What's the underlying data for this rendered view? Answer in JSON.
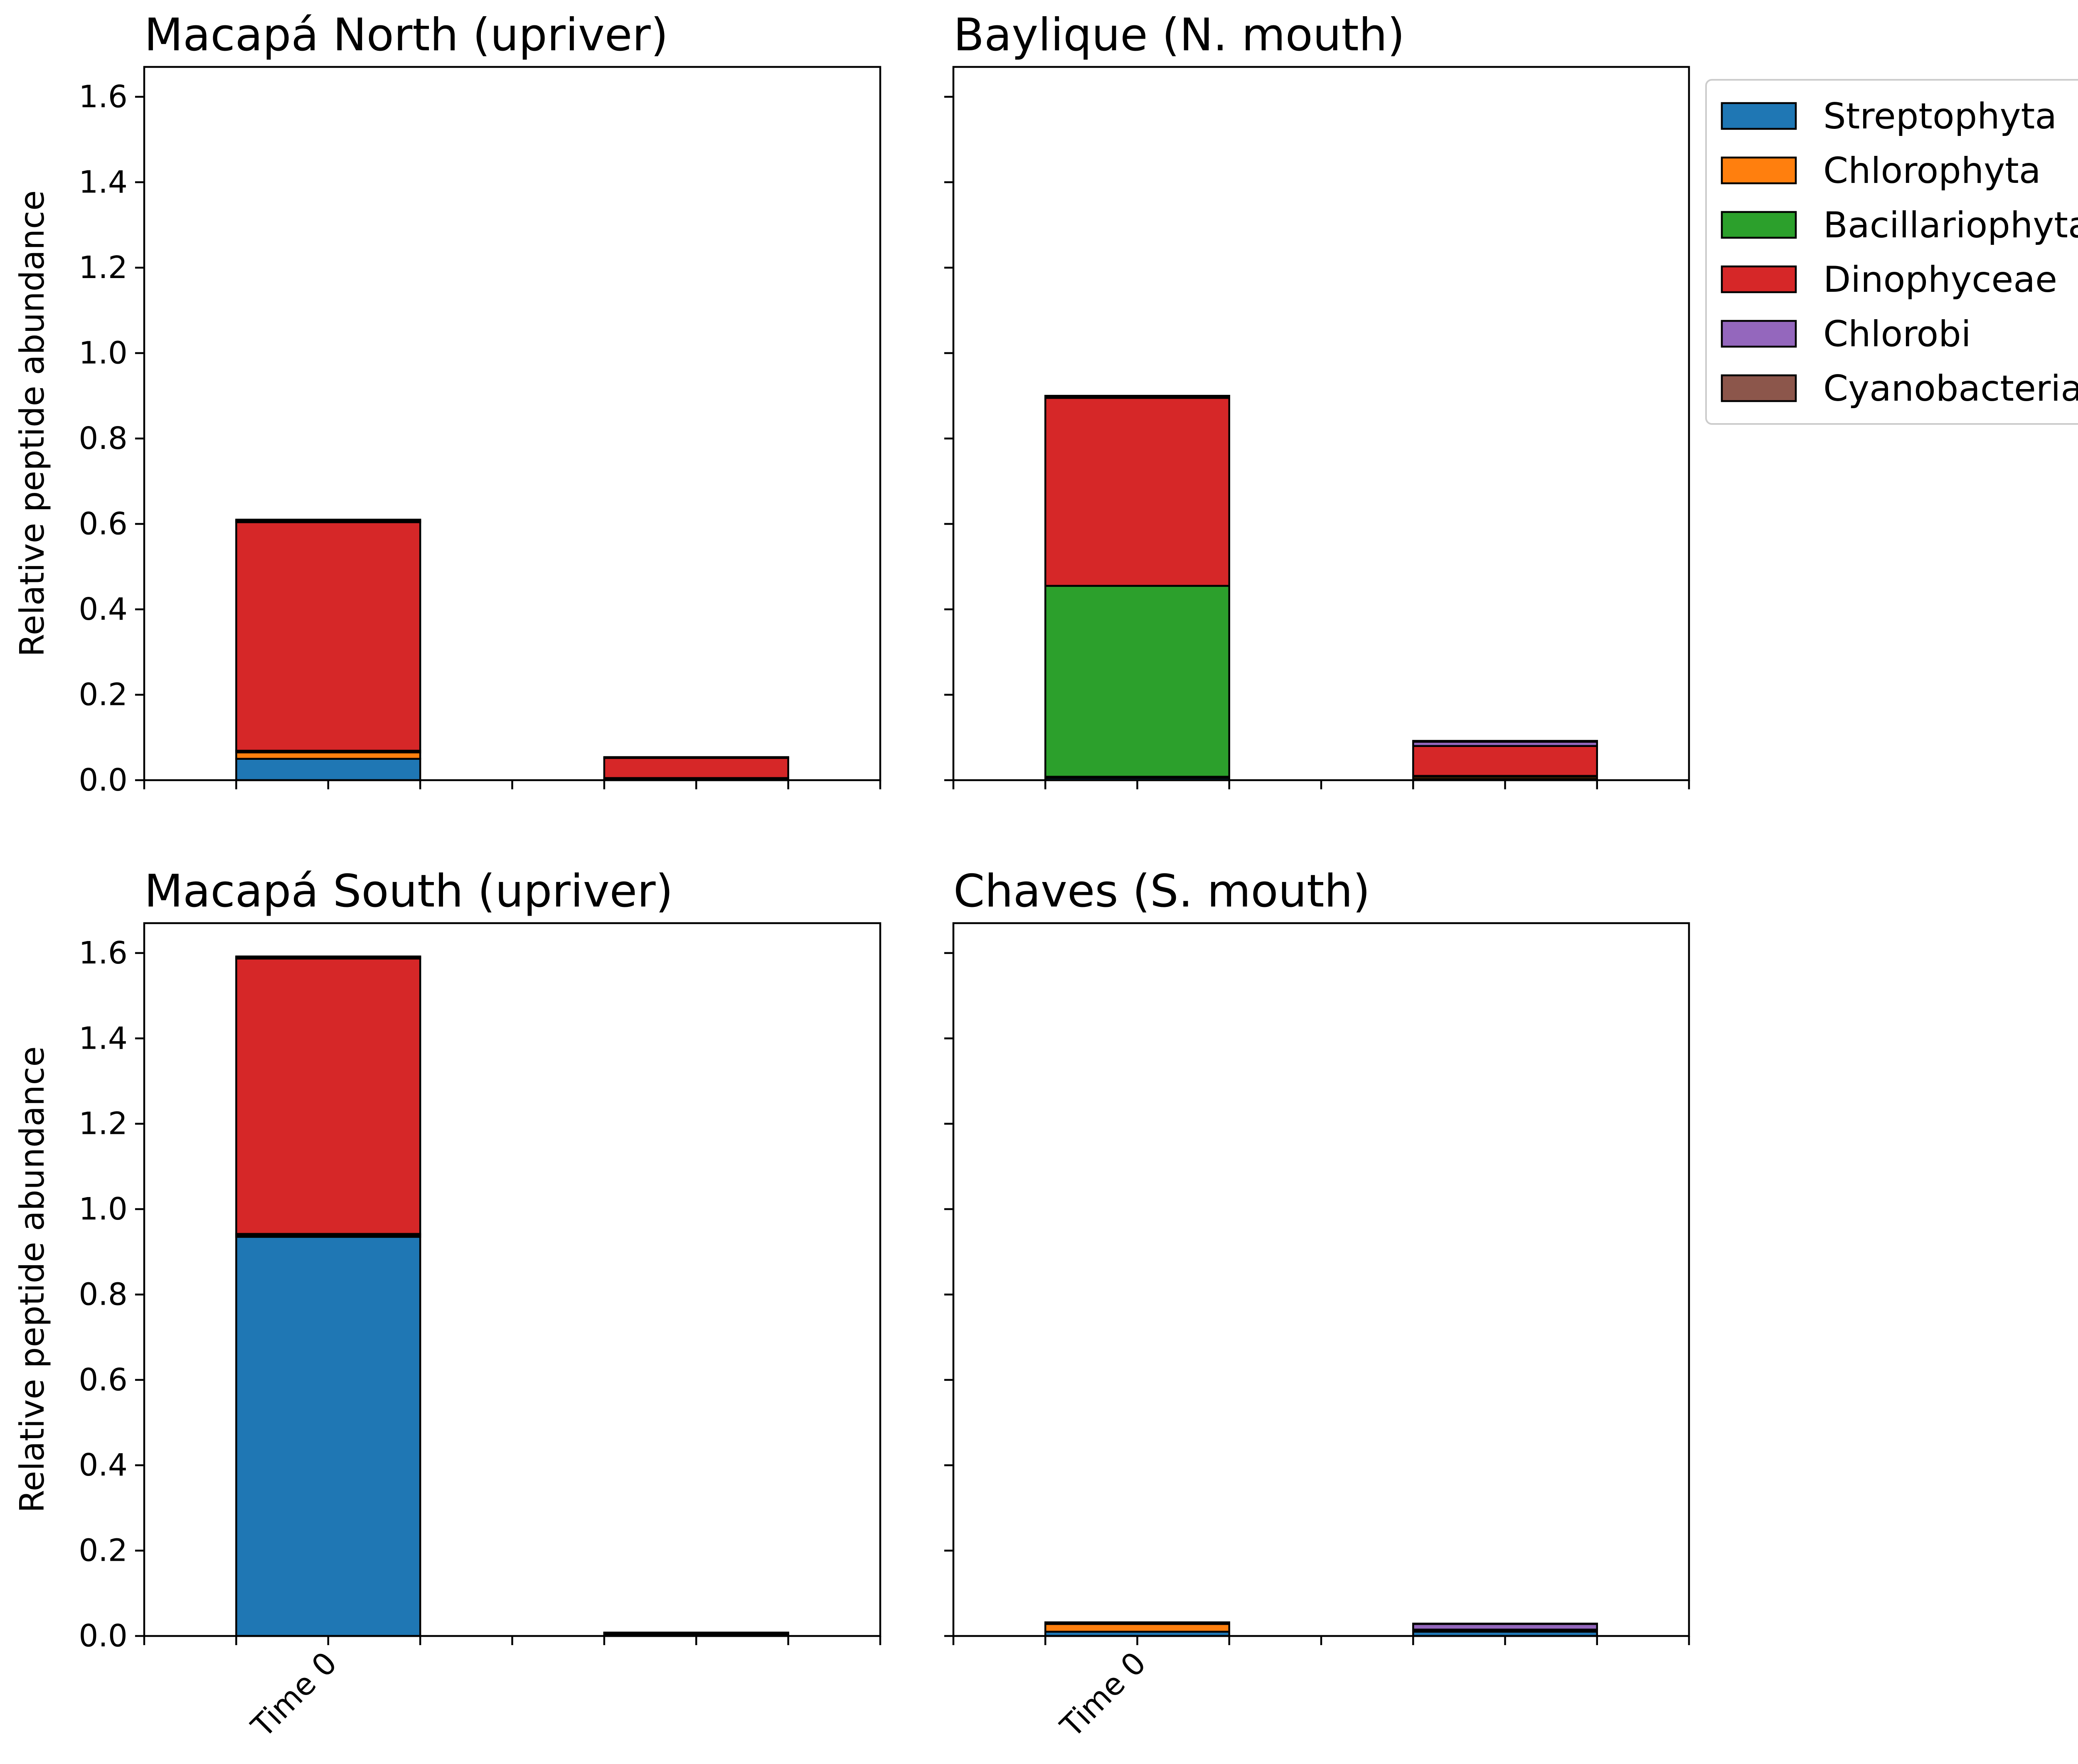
{
  "chart_data": {
    "type": "bar",
    "stacked": true,
    "layout": "2x2 subplots, shared y axis",
    "ylim": [
      0,
      1.67
    ],
    "yticks": [
      "0.0",
      "0.2",
      "0.4",
      "0.6",
      "0.8",
      "1.0",
      "1.2",
      "1.4",
      "1.6"
    ],
    "ytick_values": [
      0.0,
      0.2,
      0.4,
      0.6,
      0.8,
      1.0,
      1.2,
      1.4,
      1.6
    ],
    "ylabel": "Relative peptide abundance",
    "categories": [
      "Time 0",
      ""
    ],
    "category_tick_labels": [
      "Time 0",
      ""
    ],
    "grid": false,
    "legend_position": "right of top-right panel",
    "series": [
      {
        "name": "Streptophyta",
        "color": "#1f77b4"
      },
      {
        "name": "Chlorophyta",
        "color": "#ff7f0e"
      },
      {
        "name": "Bacillariophyta",
        "color": "#2ca02c"
      },
      {
        "name": "Dinophyceae",
        "color": "#d62728"
      },
      {
        "name": "Chlorobi",
        "color": "#9467bd"
      },
      {
        "name": "Cyanobacteria",
        "color": "#8c564b"
      }
    ],
    "panels": [
      {
        "title": "Macapá North (upriver)",
        "values": [
          [
            0.05,
            0.003
          ],
          [
            0.015,
            0.002
          ],
          [
            0.004,
            0.0
          ],
          [
            0.535,
            0.047
          ],
          [
            0.003,
            0.002
          ],
          [
            0.003,
            0.0
          ]
        ]
      },
      {
        "title": "Baylique (N. mouth)",
        "values": [
          [
            0.005,
            0.003
          ],
          [
            0.003,
            0.005
          ],
          [
            0.447,
            0.002
          ],
          [
            0.44,
            0.07
          ],
          [
            0.003,
            0.01
          ],
          [
            0.002,
            0.002
          ]
        ]
      },
      {
        "title": "Macapá South (upriver)",
        "values": [
          [
            0.935,
            0.002
          ],
          [
            0.004,
            0.001
          ],
          [
            0.003,
            0.001
          ],
          [
            0.645,
            0.002
          ],
          [
            0.003,
            0.001
          ],
          [
            0.002,
            0.001
          ]
        ]
      },
      {
        "title": "Chaves (S. mouth)",
        "values": [
          [
            0.01,
            0.01
          ],
          [
            0.018,
            0.003
          ],
          [
            0.001,
            0.001
          ],
          [
            0.001,
            0.001
          ],
          [
            0.001,
            0.013
          ],
          [
            0.001,
            0.001
          ]
        ]
      }
    ]
  }
}
